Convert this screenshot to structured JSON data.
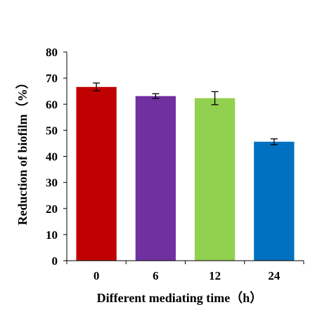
{
  "chart_data": {
    "type": "bar",
    "title": "",
    "xlabel": "Different mediating time（h）",
    "ylabel": "Reduction of biofilm（%）",
    "categories": [
      "0",
      "6",
      "12",
      "24"
    ],
    "values": [
      66.6,
      63.1,
      62.3,
      45.6
    ],
    "errors": [
      1.5,
      0.9,
      2.5,
      1.1
    ],
    "colors": [
      "#C00000",
      "#7030A0",
      "#92D050",
      "#0070C0"
    ],
    "ylim": [
      0,
      80
    ],
    "yticks": [
      0,
      10,
      20,
      30,
      40,
      50,
      60,
      70,
      80
    ],
    "grid": false,
    "legend": "none"
  }
}
